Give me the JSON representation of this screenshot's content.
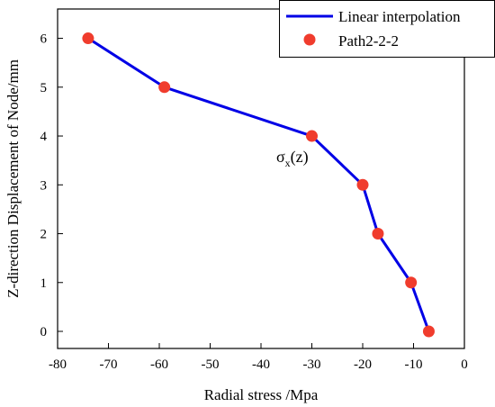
{
  "chart_data": {
    "type": "line",
    "title": "",
    "xlabel": "Radial stress /Mpa",
    "ylabel": "Z-direction Displacement of Node/mm",
    "xlim": [
      -80,
      0
    ],
    "ylim": [
      -0.35,
      6.6
    ],
    "xticks": [
      -80,
      -70,
      -60,
      -50,
      -40,
      -30,
      -20,
      -10,
      0
    ],
    "yticks": [
      0,
      1,
      2,
      3,
      4,
      5,
      6
    ],
    "grid": false,
    "legend_position": "top-right",
    "series": [
      {
        "name": "Linear interpolation",
        "kind": "line",
        "color": "#0000e6",
        "x": [
          -74,
          -59,
          -30,
          -20,
          -17,
          -10.5,
          -7
        ],
        "y": [
          6,
          5,
          4,
          3,
          2,
          1,
          0
        ]
      },
      {
        "name": "Path2-2-2",
        "kind": "scatter",
        "color": "#f03c2d",
        "x": [
          -74,
          -59,
          -30,
          -20,
          -17,
          -10.5,
          -7
        ],
        "y": [
          6,
          5,
          4,
          3,
          2,
          1,
          0
        ]
      }
    ],
    "annotation": {
      "main": "σ",
      "sub": "x",
      "tail": "(z)",
      "x": -37,
      "y": 3.8
    }
  }
}
